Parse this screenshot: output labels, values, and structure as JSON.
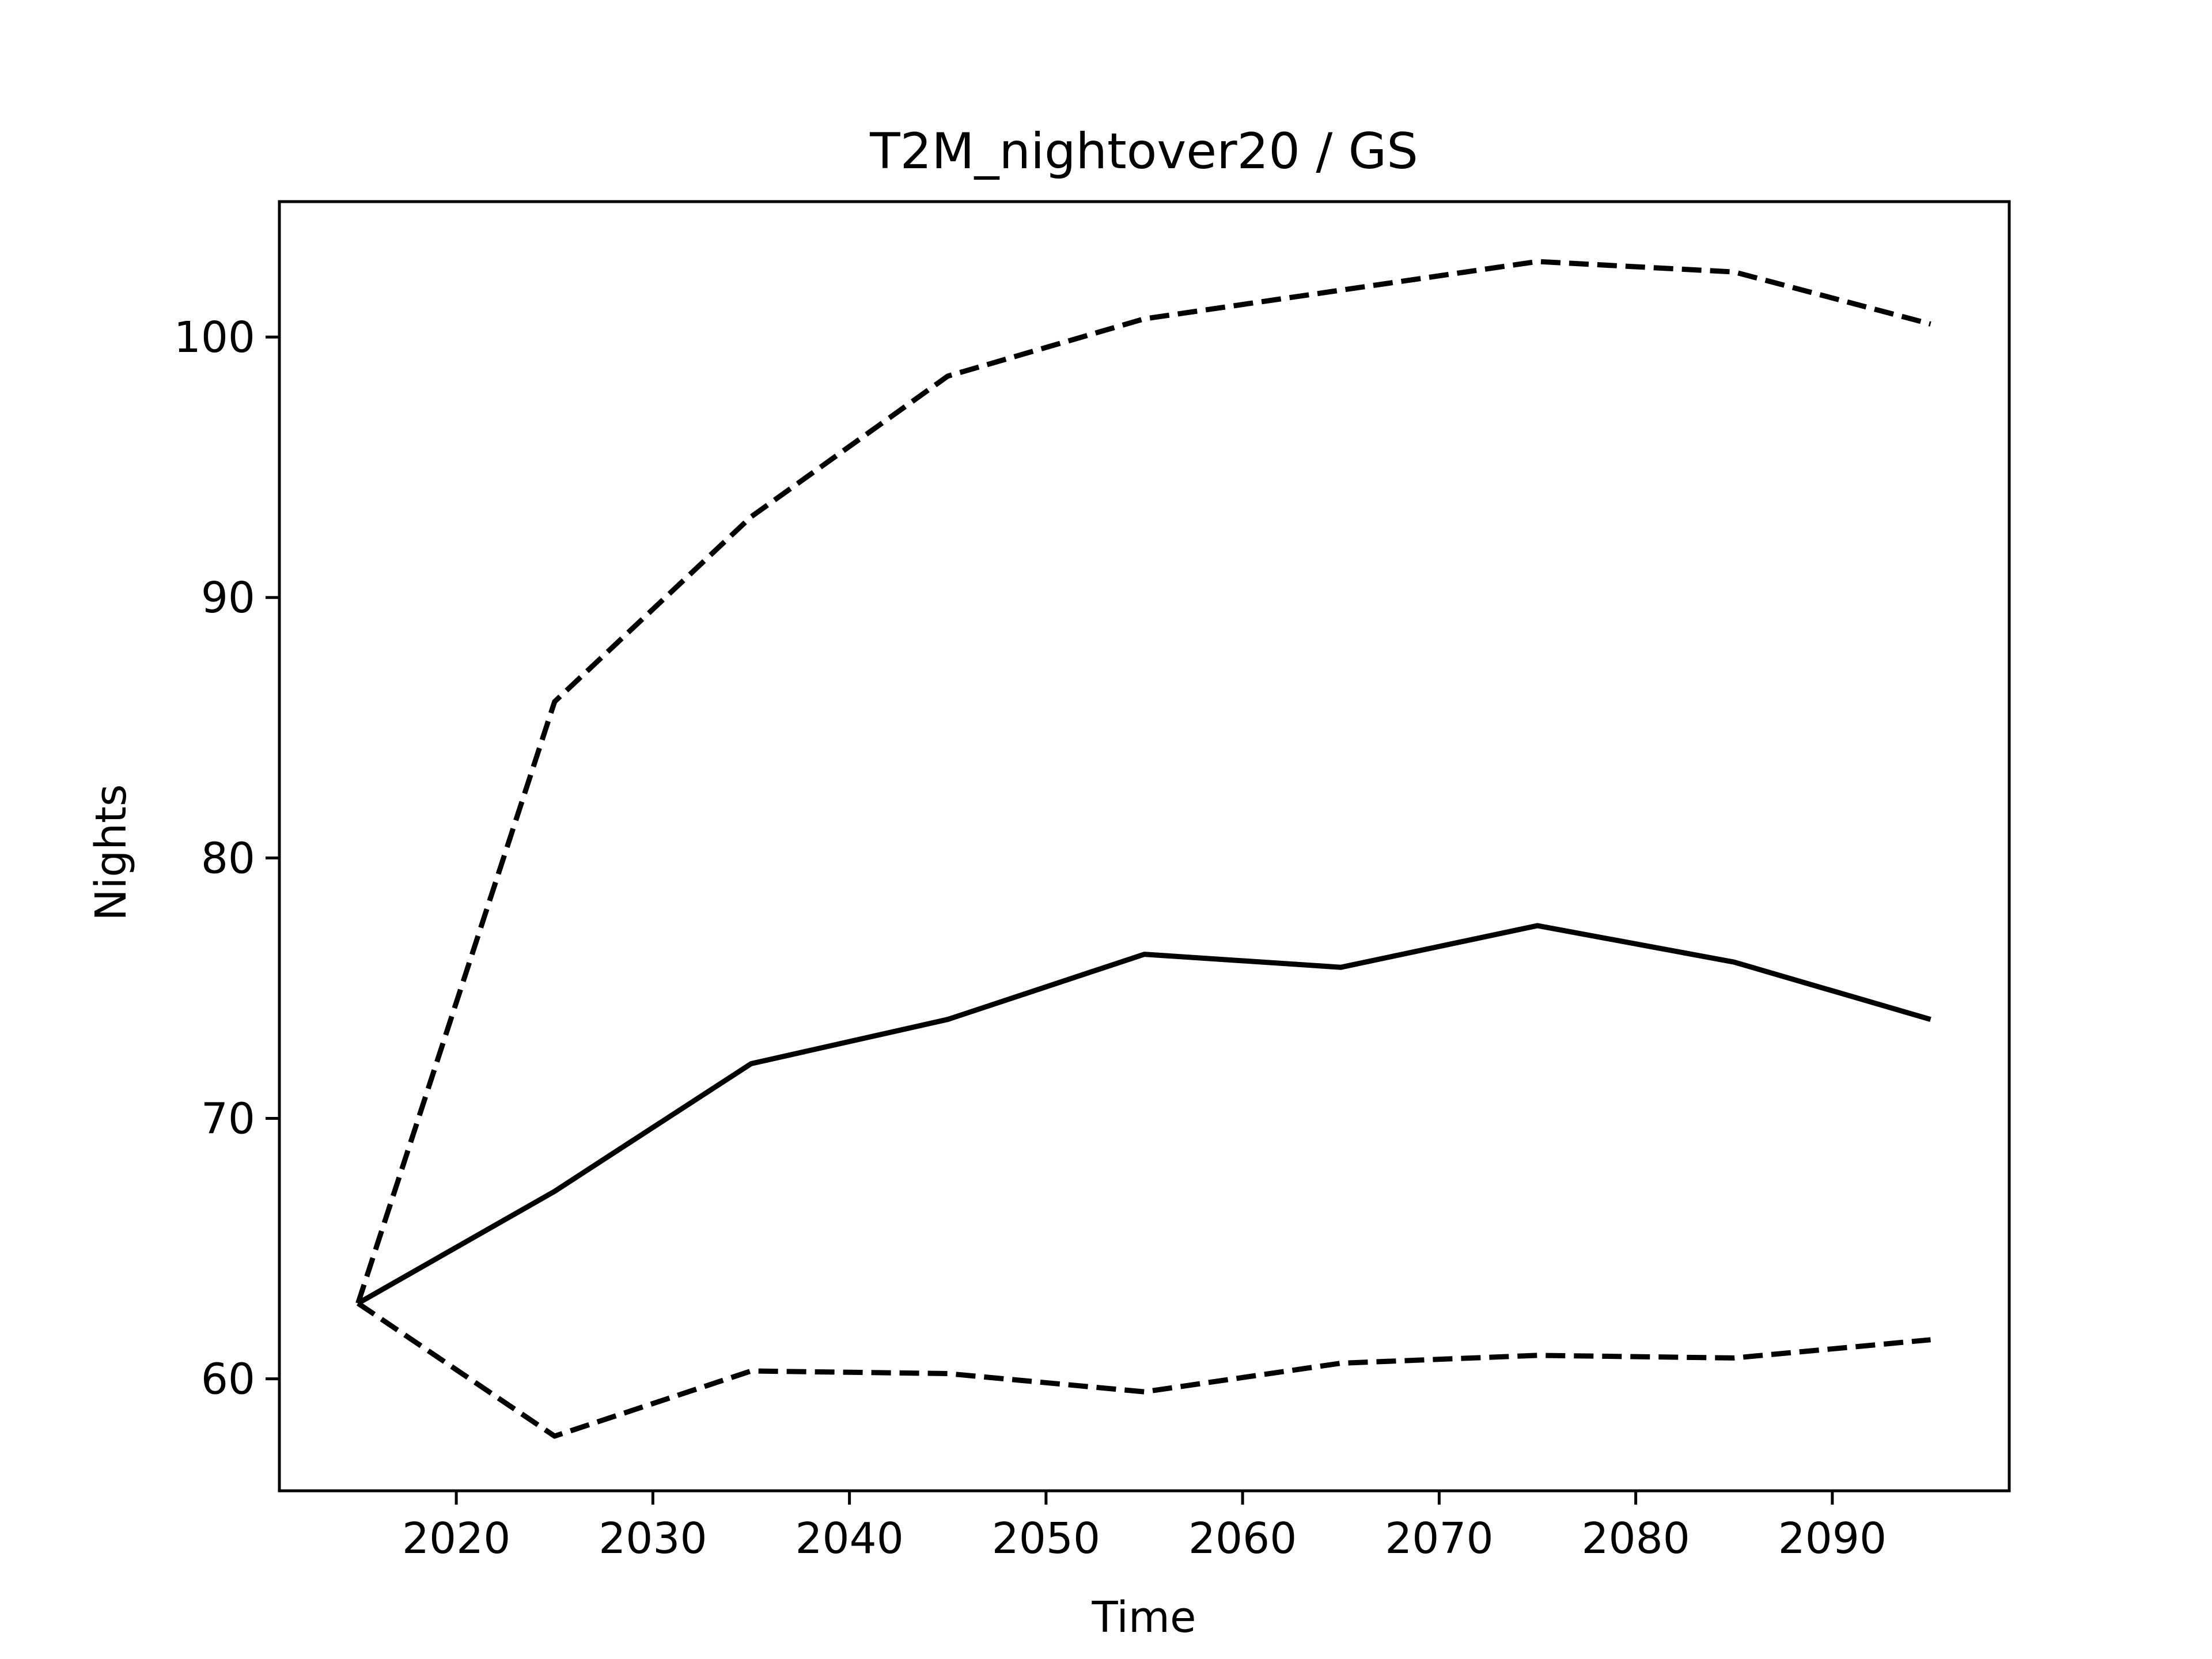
{
  "chart_data": {
    "type": "line",
    "title": "T2M_nightover20 / GS",
    "xlabel": "Time",
    "ylabel": "Nights",
    "x": [
      2015,
      2025,
      2035,
      2045,
      2055,
      2065,
      2075,
      2085,
      2095
    ],
    "xlim": [
      2011,
      2099
    ],
    "ylim": [
      55.7,
      105.2
    ],
    "xticks": [
      2020,
      2030,
      2040,
      2050,
      2060,
      2070,
      2080,
      2090
    ],
    "yticks": [
      60,
      70,
      80,
      90,
      100
    ],
    "grid": false,
    "series": [
      {
        "style": "dashed",
        "color": "#000000",
        "values": [
          62.9,
          86.0,
          93.1,
          98.5,
          100.7,
          101.8,
          102.9,
          102.5,
          100.5
        ]
      },
      {
        "style": "solid",
        "color": "#000000",
        "values": [
          62.9,
          67.2,
          72.1,
          73.8,
          76.3,
          75.8,
          77.4,
          76.0,
          73.8
        ]
      },
      {
        "style": "dashed",
        "color": "#000000",
        "values": [
          62.9,
          57.8,
          60.3,
          60.2,
          59.5,
          60.6,
          60.9,
          60.8,
          61.5
        ]
      }
    ]
  }
}
